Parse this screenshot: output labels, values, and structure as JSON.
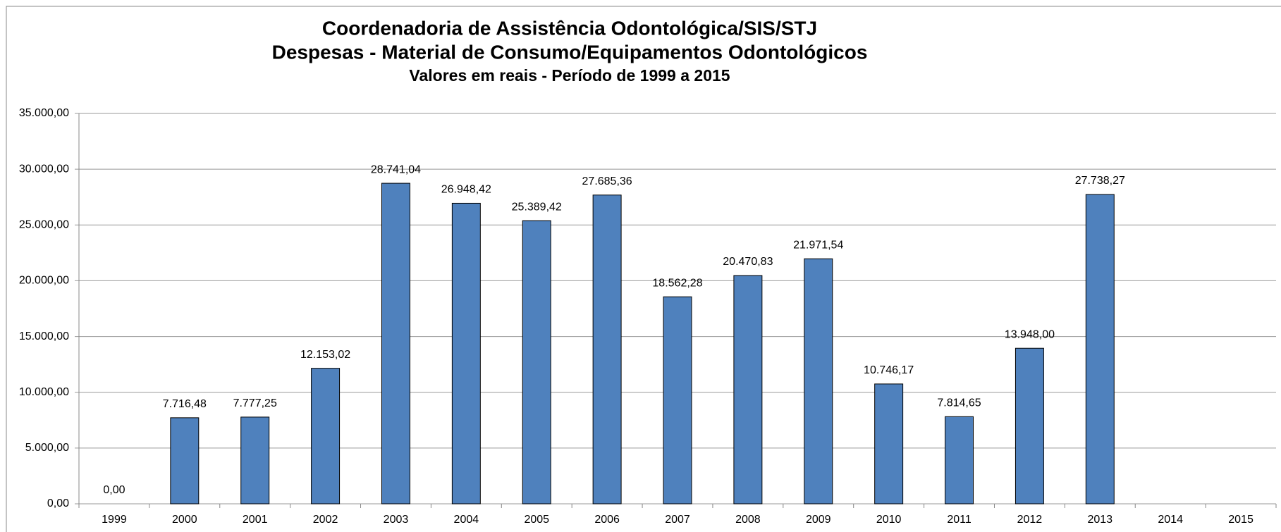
{
  "chart_data": {
    "type": "bar",
    "title": [
      "Coordenadoria de Assistência Odontológica/SIS/STJ",
      "Despesas - Material de Consumo/Equipamentos Odontológicos"
    ],
    "subtitle": "Valores em reais - Período de 1999 a 2015",
    "categories": [
      "1999",
      "2000",
      "2001",
      "2002",
      "2003",
      "2004",
      "2005",
      "2006",
      "2007",
      "2008",
      "2009",
      "2010",
      "2011",
      "2012",
      "2013",
      "2014",
      "2015"
    ],
    "values": [
      0,
      7716.48,
      7777.25,
      12153.02,
      28741.04,
      26948.42,
      25389.42,
      27685.36,
      18562.28,
      20470.83,
      21971.54,
      10746.17,
      7814.65,
      13948.0,
      27738.27,
      null,
      null
    ],
    "value_labels": [
      "0,00",
      "7.716,48",
      "7.777,25",
      "12.153,02",
      "28.741,04",
      "26.948,42",
      "25.389,42",
      "27.685,36",
      "18.562,28",
      "20.470,83",
      "21.971,54",
      "10.746,17",
      "7.814,65",
      "13.948,00",
      "27.738,27",
      null,
      null
    ],
    "color": "#4f81bd",
    "ylim": [
      0,
      35000
    ],
    "yticks": [
      {
        "value": 0,
        "label": "0,00"
      },
      {
        "value": 5000,
        "label": "5.000,00"
      },
      {
        "value": 10000,
        "label": "10.000,00"
      },
      {
        "value": 15000,
        "label": "15.000,00"
      },
      {
        "value": 20000,
        "label": "20.000,00"
      },
      {
        "value": 25000,
        "label": "25.000,00"
      },
      {
        "value": 30000,
        "label": "30.000,00"
      },
      {
        "value": 35000,
        "label": "35.000,00"
      }
    ],
    "grid": true
  }
}
